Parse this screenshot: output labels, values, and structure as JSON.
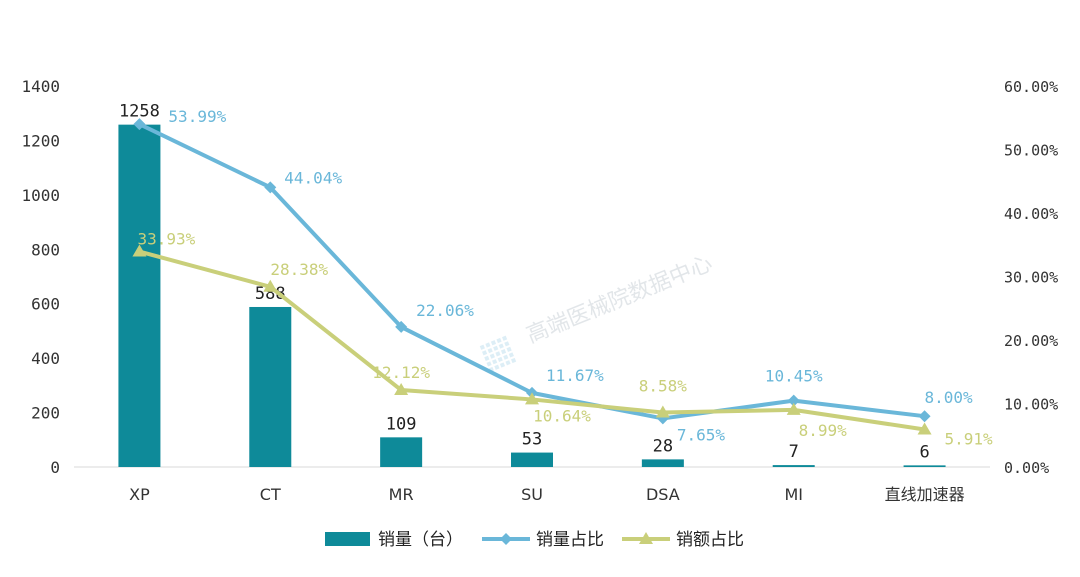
{
  "chart_data": {
    "type": "bar+line",
    "categories": [
      "XP",
      "CT",
      "MR",
      "SU",
      "DSA",
      "MI",
      "直线加速器"
    ],
    "bar_series": {
      "name": "销量（台）",
      "values": [
        1258,
        588,
        109,
        53,
        28,
        7,
        6
      ],
      "color": "#0e8a99"
    },
    "line_series": [
      {
        "name": "销量占比",
        "values": [
          53.99,
          44.04,
          22.06,
          11.67,
          7.65,
          10.45,
          8.0
        ],
        "labels": [
          "53.99%",
          "44.04%",
          "22.06%",
          "11.67%",
          "7.65%",
          "10.45%",
          "8.00%"
        ],
        "color": "#6ab7d9",
        "marker": "diamond"
      },
      {
        "name": "销额占比",
        "values": [
          33.93,
          28.38,
          12.12,
          10.64,
          8.58,
          8.99,
          5.91
        ],
        "labels": [
          "33.93%",
          "28.38%",
          "12.12%",
          "10.64%",
          "8.58%",
          "8.99%",
          "5.91%"
        ],
        "color": "#c9cf7a",
        "marker": "triangle"
      }
    ],
    "y_left": {
      "ticks": [
        "0",
        "200",
        "400",
        "600",
        "800",
        "1000",
        "1200",
        "1400"
      ],
      "min": 0,
      "max": 1400
    },
    "y_right": {
      "ticks": [
        "0.00%",
        "10.00%",
        "20.00%",
        "30.00%",
        "40.00%",
        "50.00%",
        "60.00%"
      ],
      "min": 0,
      "max": 60
    },
    "legend_position": "bottom",
    "grid": false
  },
  "watermark": {
    "text": "高端医械院数据中心"
  }
}
